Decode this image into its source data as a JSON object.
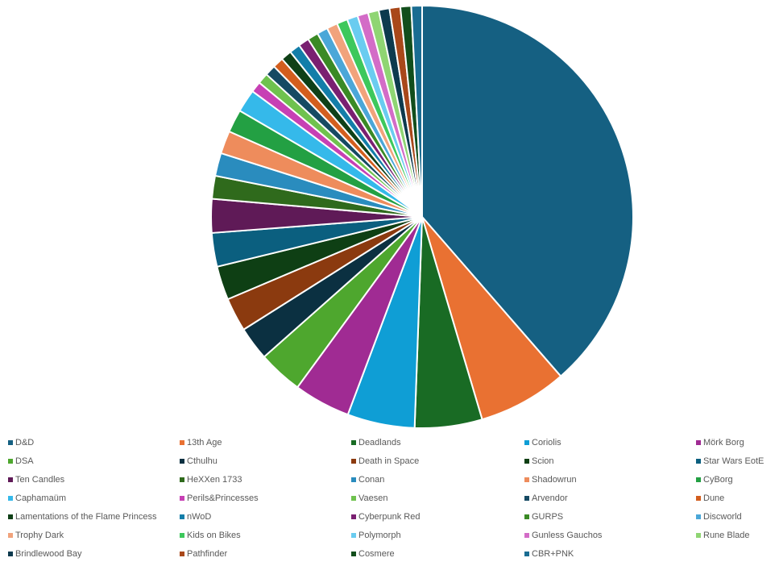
{
  "chart_data": {
    "type": "pie",
    "title": "",
    "legend_position": "bottom",
    "categories": [
      "D&D",
      "13th Age",
      "Deadlands",
      "Coriolis",
      "Mörk Borg",
      "DSA",
      "Cthulhu",
      "Death in Space",
      "Scion",
      "Star Wars EotE",
      "Ten Candles",
      "HeXXen 1733",
      "Conan",
      "Shadowrun",
      "CyBorg",
      "Caphamaüm",
      "Perils&Princesses",
      "Vaesen",
      "Arvendor",
      "Dune",
      "Lamentations of the Flame Princess",
      "nWoD",
      "Cyberpunk Red",
      "GURPS",
      "Discworld",
      "Trophy Dark",
      "Kids on Bikes",
      "Polymorph",
      "Gunless Gauchos",
      "Rune Blade",
      "Brindlewood Bay",
      "Pathfinder",
      "Cosmere",
      "CBR+PNK"
    ],
    "values": [
      37.4,
      6.6,
      5.0,
      5.0,
      4.2,
      3.3,
      2.5,
      2.5,
      2.5,
      2.5,
      2.5,
      1.7,
      1.7,
      1.7,
      1.7,
      1.7,
      0.8,
      0.8,
      0.8,
      0.8,
      0.8,
      0.8,
      0.8,
      0.8,
      0.8,
      0.8,
      0.8,
      0.8,
      0.8,
      0.8,
      0.8,
      0.8,
      0.8,
      0.8
    ],
    "colors": [
      "#156082",
      "#E97132",
      "#196B24",
      "#0F9ED5",
      "#A02B93",
      "#4EA72E",
      "#0B3041",
      "#8B3A0F",
      "#0E3F14",
      "#0B5F7F",
      "#5F1A57",
      "#2F6A1C",
      "#2A8CBE",
      "#EE8C5C",
      "#23A043",
      "#35B9EA",
      "#C740B4",
      "#6FC24E",
      "#164A63",
      "#D35E1E",
      "#0F4017",
      "#137EA9",
      "#7A2071",
      "#3A8A25",
      "#4BA7D8",
      "#F1A37C",
      "#3DC85C",
      "#6ACCF0",
      "#D36CC7",
      "#8FD573",
      "#0D3A4E",
      "#A9481A",
      "#124E1C",
      "#1A6D92"
    ]
  }
}
